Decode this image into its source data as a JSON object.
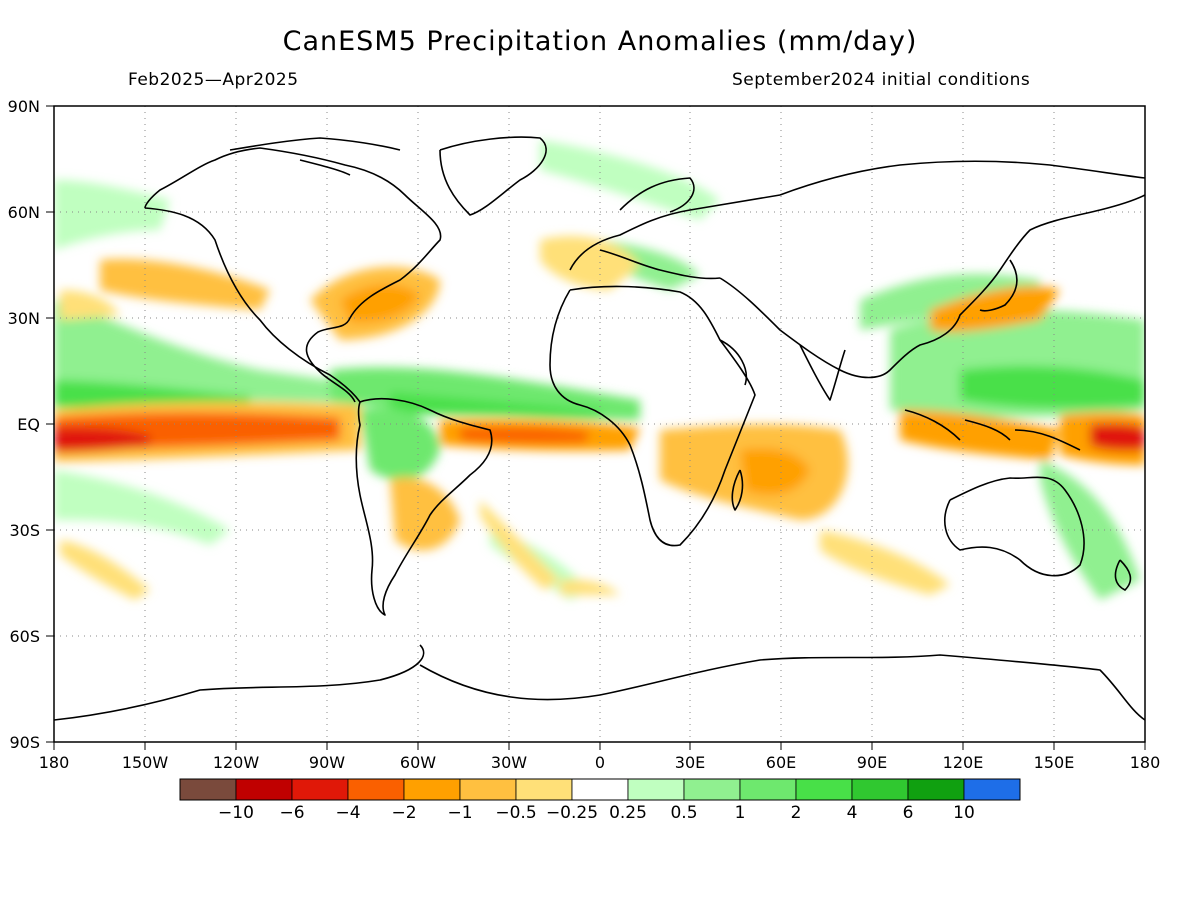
{
  "title": "CanESM5 Precipitation Anomalies (mm/day)",
  "period": "Feb2025—Apr2025",
  "init": "September2024 initial conditions",
  "lat_labels": [
    "90N",
    "60N",
    "30N",
    "EQ",
    "30S",
    "60S",
    "90S"
  ],
  "lon_labels": [
    "180",
    "150W",
    "120W",
    "90W",
    "60W",
    "30W",
    "0",
    "30E",
    "60E",
    "90E",
    "120E",
    "150E",
    "180"
  ],
  "colorbar": {
    "colors": [
      "#7a4a3c",
      "#c00000",
      "#e01808",
      "#fa6000",
      "#ffa000",
      "#ffc040",
      "#ffe078",
      "#ffffff",
      "#c0ffc0",
      "#90f090",
      "#6ee86e",
      "#48e048",
      "#30c830",
      "#10a010",
      "#1e6ee8"
    ],
    "labels": [
      "−10",
      "−6",
      "−4",
      "−2",
      "−1",
      "−0.5",
      "−0.25",
      "0.25",
      "0.5",
      "1",
      "2",
      "4",
      "6",
      "10"
    ]
  },
  "chart_data": {
    "type": "heatmap",
    "title": "CanESM5 Precipitation Anomalies (mm/day)",
    "x_range": [
      "180",
      "180"
    ],
    "y_range": [
      "90S",
      "90N"
    ],
    "levels": [
      -10,
      -6,
      -4,
      -2,
      -1,
      -0.5,
      -0.25,
      0.25,
      0.5,
      1,
      2,
      4,
      6,
      10
    ],
    "grid": true
  }
}
